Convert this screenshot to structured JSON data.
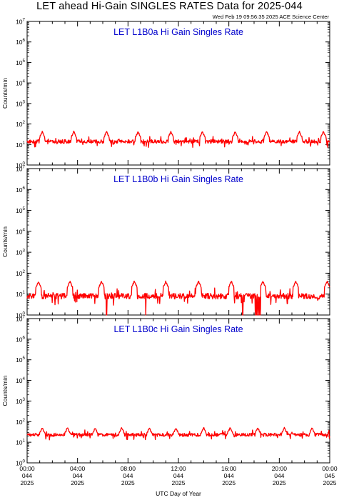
{
  "title": "LET ahead Hi-Gain SINGLES RATES Data for 2025-044",
  "timestamp": "Wed Feb 19 09:56:35 2025 ACE Science Center",
  "xlabel": "UTC Day of Year",
  "colors": {
    "trace": "#ff0000",
    "panel_label": "#0000cc",
    "axes": "#000000"
  },
  "chart_data": [
    {
      "type": "line",
      "title": "LET L1B0a Hi Gain Singles Rate",
      "ylabel": "Counts/min",
      "yscale": "log",
      "ylim": [
        1,
        10000000
      ],
      "ytick_labels": [
        "10^0",
        "10^1",
        "10^2",
        "10^3",
        "10^4",
        "10^5",
        "10^6",
        "10^7"
      ],
      "xlim_hours": [
        0,
        24
      ],
      "baseline": 14,
      "noise": 0.09,
      "spike_peak": 42,
      "spike_hours": [
        1.2,
        3.7,
        6.3,
        8.8,
        11.4,
        13.9,
        16.5,
        19.0,
        21.6,
        23.5
      ],
      "dropouts": []
    },
    {
      "type": "line",
      "title": "LET L1B0b Hi Gain Singles Rate",
      "ylabel": "Counts/min",
      "yscale": "log",
      "ylim": [
        1,
        10000000
      ],
      "ytick_labels": [
        "10^0",
        "10^1",
        "10^2",
        "10^3",
        "10^4",
        "10^5",
        "10^6",
        "10^7"
      ],
      "xlim_hours": [
        0,
        24
      ],
      "baseline": 8,
      "noise": 0.14,
      "spike_peak": 40,
      "spike_hours": [
        0.9,
        3.4,
        5.9,
        8.5,
        11.0,
        13.6,
        16.2,
        18.7,
        21.3,
        23.8
      ],
      "dropouts": [
        6.3,
        9.4,
        17.1,
        18.1,
        18.2,
        18.3,
        18.4,
        18.5
      ]
    },
    {
      "type": "line",
      "title": "LET L1B0c Hi Gain Singles Rate",
      "ylabel": "Counts/min",
      "yscale": "log",
      "ylim": [
        1,
        10000000
      ],
      "ytick_labels": [
        "10^0",
        "10^1",
        "10^2",
        "10^3",
        "10^4",
        "10^5",
        "10^6",
        "10^7"
      ],
      "xlim_hours": [
        0,
        24
      ],
      "baseline": 23,
      "noise": 0.08,
      "spike_peak": 50,
      "spike_hours": [
        1.2,
        3.2,
        5.4,
        7.5,
        9.7,
        11.8,
        14.0,
        16.1,
        18.3,
        20.4,
        22.6
      ],
      "dropouts": []
    }
  ],
  "x_ticks": [
    {
      "time": "00:00",
      "doy": "044",
      "year": "2025"
    },
    {
      "time": "04:00",
      "doy": "044",
      "year": "2025"
    },
    {
      "time": "08:00",
      "doy": "044",
      "year": "2025"
    },
    {
      "time": "12:00",
      "doy": "044",
      "year": "2025"
    },
    {
      "time": "16:00",
      "doy": "044",
      "year": "2025"
    },
    {
      "time": "20:00",
      "doy": "044",
      "year": "2025"
    },
    {
      "time": "00:00",
      "doy": "045",
      "year": "2025"
    }
  ]
}
